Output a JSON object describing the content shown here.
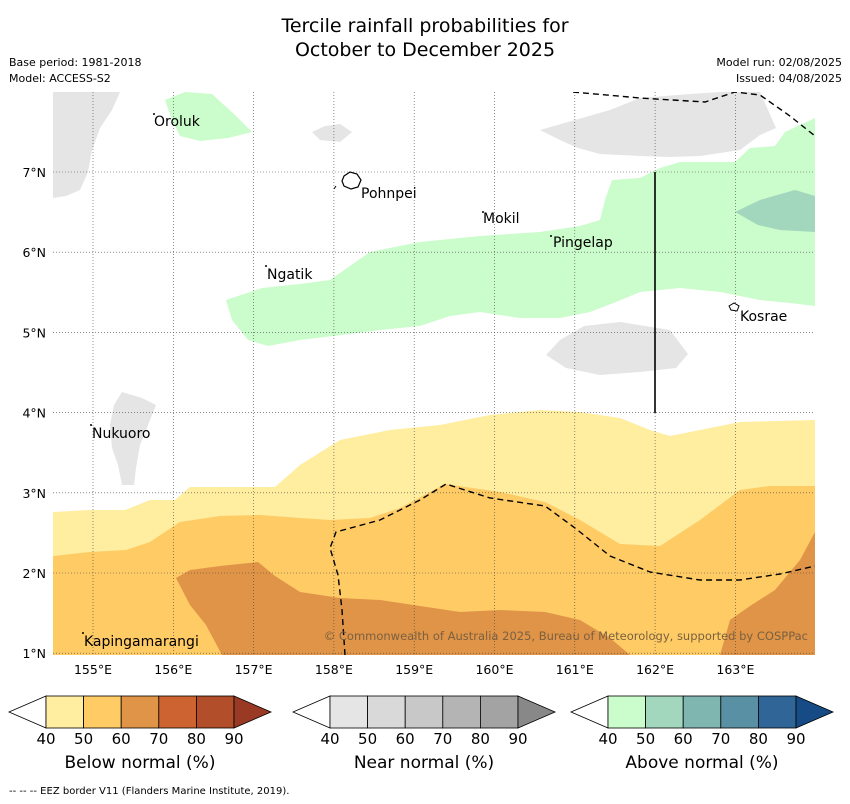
{
  "title_line1": "Tercile rainfall probabilities for",
  "title_line2": "October to December 2025",
  "meta": {
    "base_period": "Base period: 1981-2018",
    "model": "Model: ACCESS-S2",
    "model_run": "Model run: 02/08/2025",
    "issued": "Issued: 04/08/2025"
  },
  "map": {
    "x_ticks": [
      "155°E",
      "156°E",
      "157°E",
      "158°E",
      "159°E",
      "160°E",
      "161°E",
      "162°E",
      "163°E"
    ],
    "y_ticks": [
      "7°N",
      "6°N",
      "5°N",
      "4°N",
      "3°N",
      "2°N",
      "1°N"
    ],
    "places": [
      "Oroluk",
      "Pohnpei",
      "Mokil",
      "Ngatik",
      "Pingelap",
      "Kosrae",
      "Nukuoro",
      "Kapingamarangi"
    ],
    "copyright": "© Commonwealth of Australia 2025, Bureau of Meteorology, supported by COSPPac"
  },
  "legends": [
    {
      "title": "Below normal (%)",
      "colors": [
        "#ffeda0",
        "#fecb65",
        "#e09447",
        "#cd6331",
        "#b24e2a",
        "#9b3a24"
      ]
    },
    {
      "title": "Near normal (%)",
      "colors": [
        "#e5e5e5",
        "#d9d9d9",
        "#c8c8c8",
        "#b4b4b4",
        "#a3a3a3",
        "#888888"
      ]
    },
    {
      "title": "Above normal (%)",
      "colors": [
        "#cbfccb",
        "#a2d6bd",
        "#80b6b0",
        "#5990a4",
        "#2f6597",
        "#174b85"
      ]
    }
  ],
  "legend_ticks": [
    "40",
    "50",
    "60",
    "70",
    "80",
    "90"
  ],
  "footnote": "--  --  -- EEZ border V11 (Flanders Marine Institute, 2019)."
}
